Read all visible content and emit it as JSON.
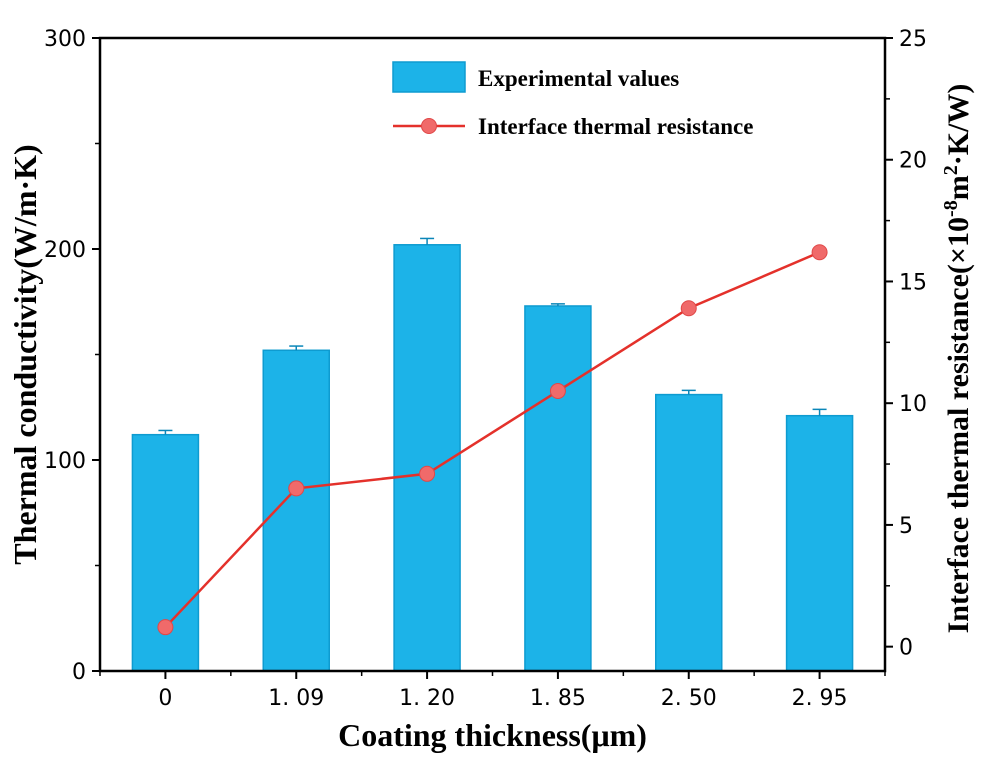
{
  "chart_data": {
    "type": "bar",
    "categories": [
      "0",
      "1. 09",
      "1. 20",
      "1. 85",
      "2. 50",
      "2. 95"
    ],
    "series": [
      {
        "name": "Experimental values",
        "type": "bar",
        "axis": "left",
        "values": [
          112,
          152,
          202,
          173,
          131,
          121
        ],
        "errors": [
          2,
          2,
          3,
          1,
          2,
          3
        ],
        "color": "#1CB3E8"
      },
      {
        "name": "Interface thermal resistance",
        "type": "line",
        "axis": "right",
        "values": [
          0.8,
          6.5,
          7.1,
          10.5,
          13.9,
          16.2
        ],
        "color": "#E4312B",
        "marker_color": "#F06A6A"
      }
    ],
    "xlabel": "Coating thickness(μm)",
    "ylabel_left": "Thermal conductivity(W/m·K)",
    "ylabel_right": {
      "base": "Interface thermal resistance(×10",
      "exp": "-8",
      "mid": "m",
      "sup2": "2",
      "tail": "·K/W)"
    },
    "y_left": {
      "range": [
        0,
        300
      ],
      "ticks": [
        "0",
        "100",
        "200",
        "300"
      ]
    },
    "y_right": {
      "range": [
        -1,
        25
      ],
      "ticks": [
        "0",
        "5",
        "10",
        "15",
        "20",
        "25"
      ]
    },
    "legend": {
      "position": "top-right"
    }
  }
}
